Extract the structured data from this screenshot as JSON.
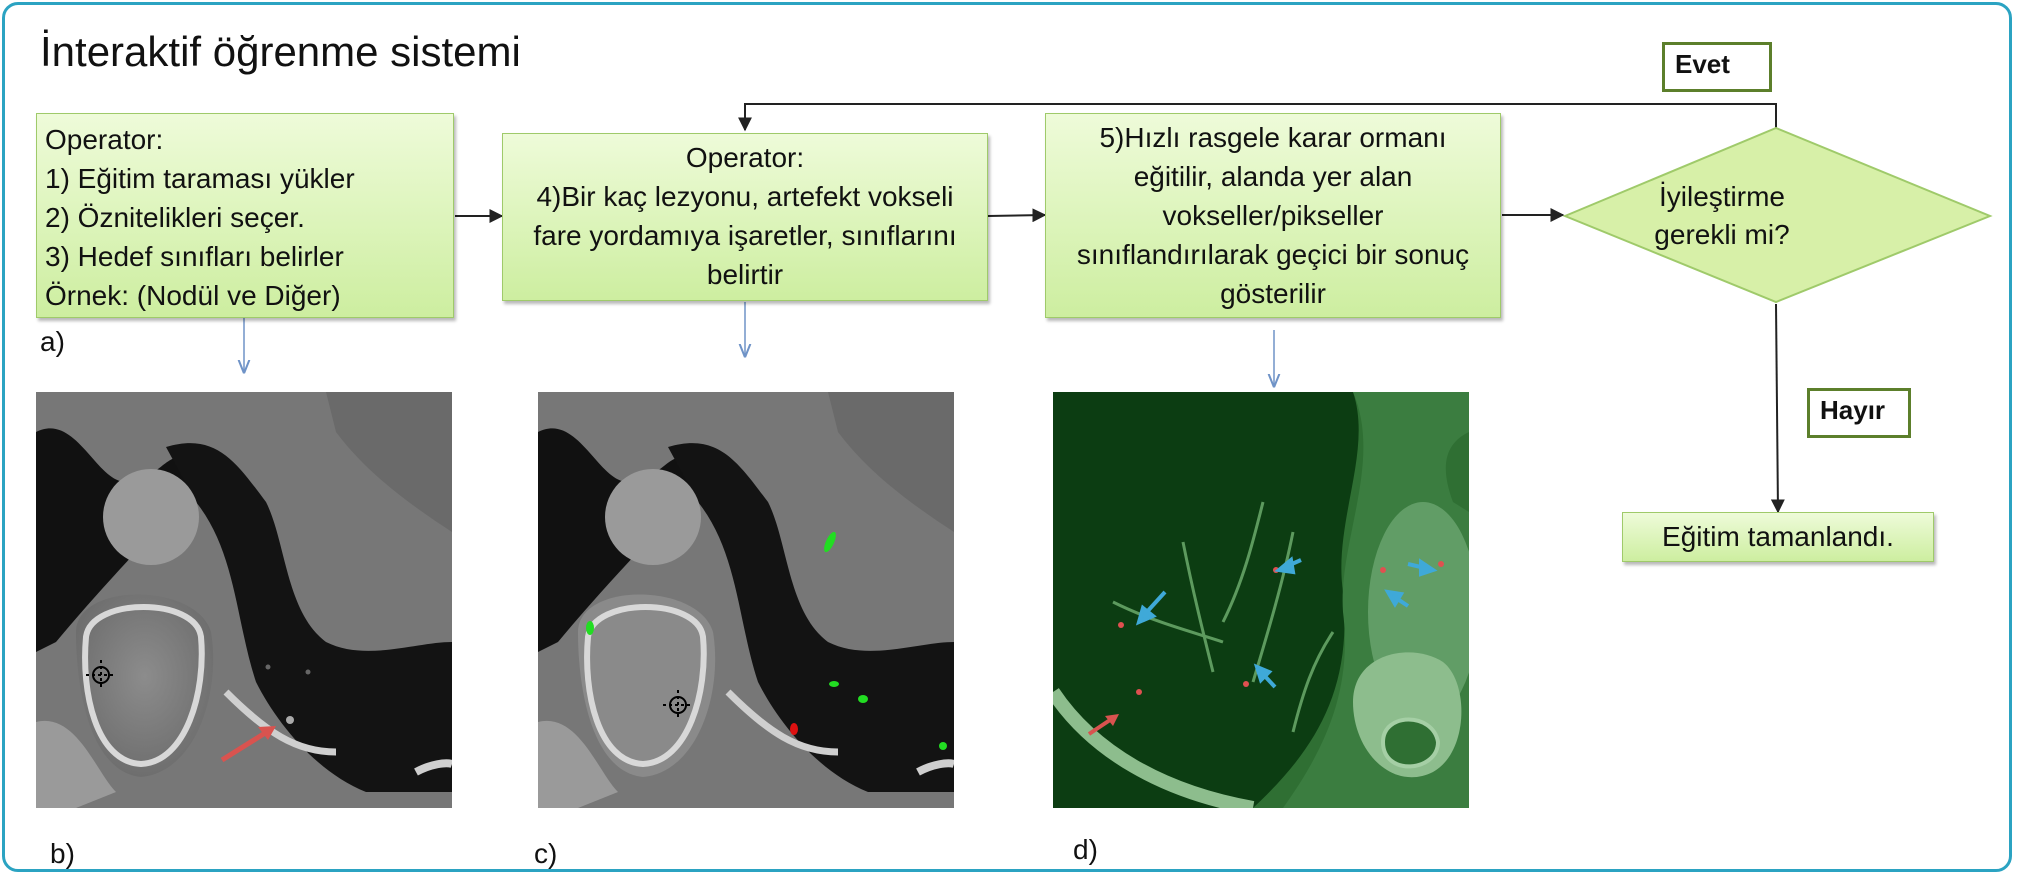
{
  "title": "İnteraktif öğrenme sistemi",
  "boxes": {
    "step1": [
      "Operator:",
      "1) Eğitim taraması yükler",
      "2) Öznitelikleri seçer.",
      "3) Hedef sınıfları belirler",
      "Örnek: (Nodül ve Diğer)"
    ],
    "step2": [
      "Operator:",
      "4)Bir kaç lezyonu, artefekt vokseli",
      "fare yordamıya işaretler, sınıflarını",
      "belirtir"
    ],
    "step3": [
      "5)Hızlı rasgele karar ormanı",
      "eğitilir, alanda yer alan",
      "vokseller/pikseller",
      "sınıflandırılarak geçici bir sonuç",
      "gösterilir"
    ],
    "decision": [
      "İyileştirme",
      "gerekli mi?"
    ],
    "done": "Eğitim tamanlandı."
  },
  "branches": {
    "yes": "Evet",
    "no": "Hayır"
  },
  "panel_labels": {
    "a": "a)",
    "b": "b)",
    "c": "c)",
    "d": "d)"
  },
  "colors": {
    "frame": "#2ba3c2",
    "box_fill_top": "#eefbd9",
    "box_fill_bottom": "#cdeea0",
    "box_border": "#9fca6a",
    "decision_fill": "#d7f0a8",
    "branch_border": "#5c7f2b",
    "arrow": "#222222",
    "thin_arrow": "#6f93c7",
    "marker_green": "#22dd22",
    "marker_red": "#dd1111",
    "red_arrow": "#d9534f",
    "blue_arrow": "#3fa9d8"
  },
  "icons": {
    "crosshair": "crosshair-icon"
  }
}
